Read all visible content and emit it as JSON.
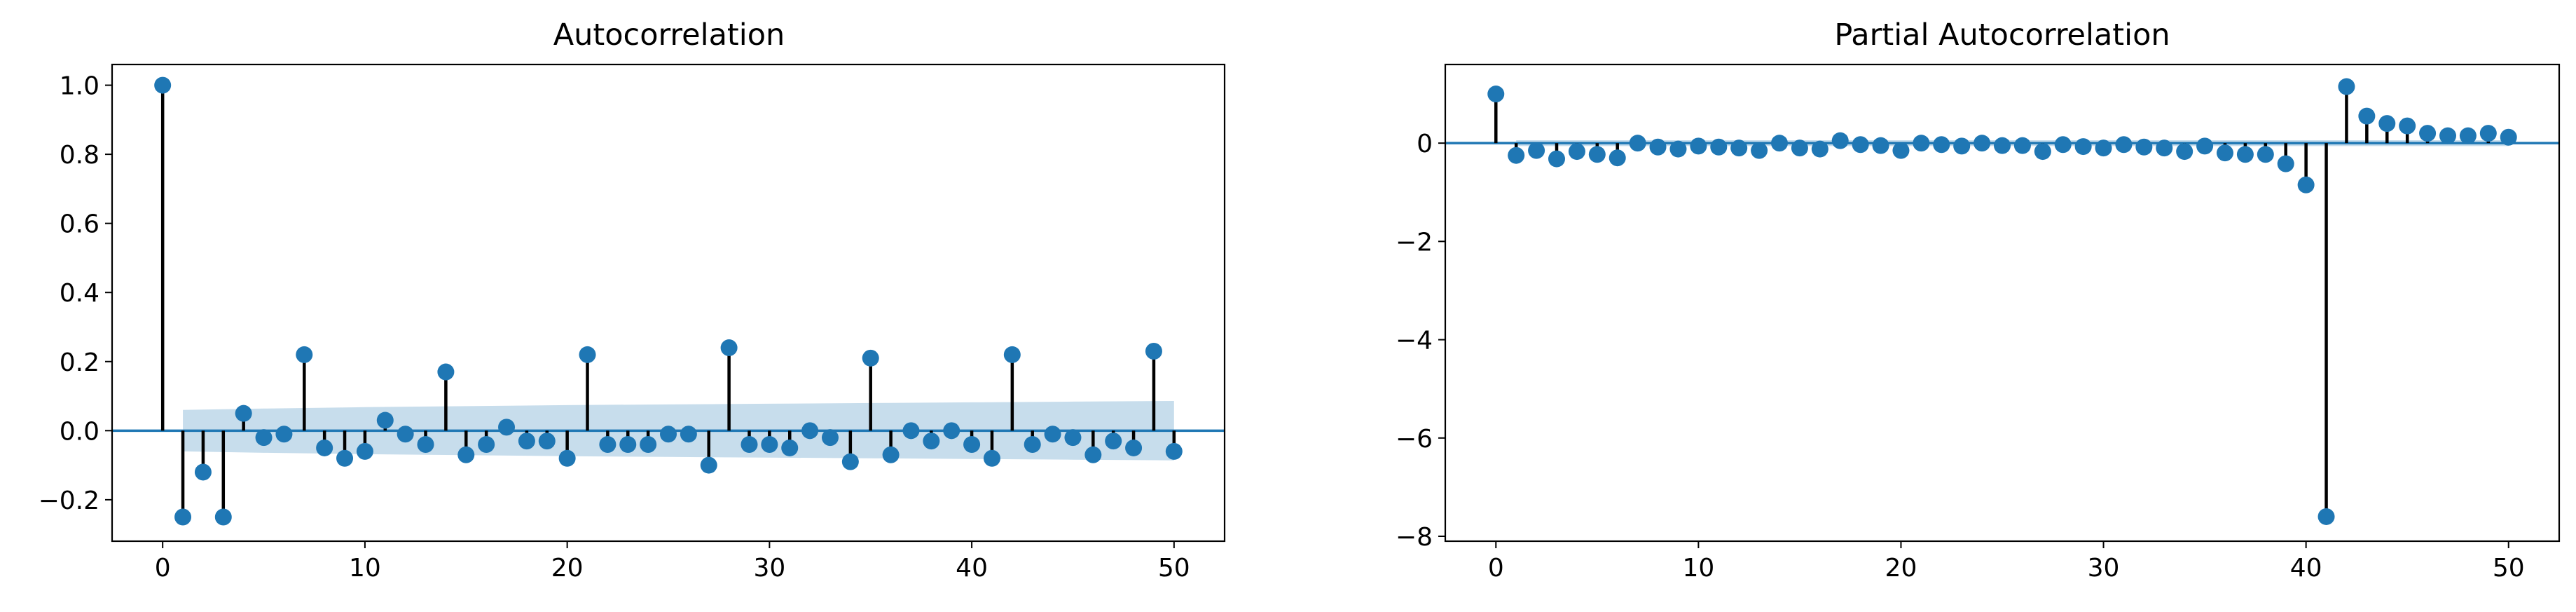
{
  "colors": {
    "marker": "#1f77b4",
    "stem": "#000000",
    "confidence_band": "#1f77b4",
    "zero_line": "#1f77b4"
  },
  "chart_data": [
    {
      "type": "stem",
      "title": "Autocorrelation",
      "xlabel": "",
      "ylabel": "",
      "xlim": [
        -2.5,
        52.5
      ],
      "ylim": [
        -0.32,
        1.06
      ],
      "xticks": [
        0,
        10,
        20,
        30,
        40,
        50
      ],
      "xtick_labels": [
        "0",
        "10",
        "20",
        "30",
        "40",
        "50"
      ],
      "yticks": [
        -0.2,
        0.0,
        0.2,
        0.4,
        0.6,
        0.8,
        1.0
      ],
      "ytick_labels": [
        "−0.2",
        "0.0",
        "0.2",
        "0.4",
        "0.6",
        "0.8",
        "1.0"
      ],
      "grid": false,
      "x": [
        0,
        1,
        2,
        3,
        4,
        5,
        6,
        7,
        8,
        9,
        10,
        11,
        12,
        13,
        14,
        15,
        16,
        17,
        18,
        19,
        20,
        21,
        22,
        23,
        24,
        25,
        26,
        27,
        28,
        29,
        30,
        31,
        32,
        33,
        34,
        35,
        36,
        37,
        38,
        39,
        40,
        41,
        42,
        43,
        44,
        45,
        46,
        47,
        48,
        49,
        50
      ],
      "values": [
        1.0,
        -0.25,
        -0.12,
        -0.25,
        0.05,
        -0.02,
        -0.01,
        0.22,
        -0.05,
        -0.08,
        -0.06,
        0.03,
        -0.01,
        -0.04,
        0.17,
        -0.07,
        -0.04,
        0.01,
        -0.03,
        -0.03,
        -0.08,
        0.22,
        -0.04,
        -0.04,
        -0.04,
        -0.01,
        -0.01,
        -0.1,
        0.24,
        -0.04,
        -0.04,
        -0.05,
        0.0,
        -0.02,
        -0.09,
        0.21,
        -0.07,
        0.0,
        -0.03,
        0.0,
        -0.04,
        -0.08,
        0.22,
        -0.04,
        -0.01,
        -0.02,
        -0.07,
        -0.03,
        -0.05,
        0.23,
        -0.06
      ],
      "confidence_band": {
        "x": [
          1,
          5,
          10,
          15,
          20,
          25,
          30,
          35,
          40,
          45,
          50
        ],
        "upper": [
          0.06,
          0.064,
          0.068,
          0.071,
          0.074,
          0.076,
          0.078,
          0.08,
          0.082,
          0.084,
          0.086
        ],
        "lower": [
          -0.06,
          -0.064,
          -0.068,
          -0.071,
          -0.074,
          -0.076,
          -0.078,
          -0.08,
          -0.082,
          -0.084,
          -0.086
        ]
      }
    },
    {
      "type": "stem",
      "title": "Partial Autocorrelation",
      "xlabel": "",
      "ylabel": "",
      "xlim": [
        -2.5,
        52.5
      ],
      "ylim": [
        -8.1,
        1.6
      ],
      "xticks": [
        0,
        10,
        20,
        30,
        40,
        50
      ],
      "xtick_labels": [
        "0",
        "10",
        "20",
        "30",
        "40",
        "50"
      ],
      "yticks": [
        -8,
        -6,
        -4,
        -2,
        0
      ],
      "ytick_labels": [
        "−8",
        "−6",
        "−4",
        "−2",
        "0"
      ],
      "grid": false,
      "x": [
        0,
        1,
        2,
        3,
        4,
        5,
        6,
        7,
        8,
        9,
        10,
        11,
        12,
        13,
        14,
        15,
        16,
        17,
        18,
        19,
        20,
        21,
        22,
        23,
        24,
        25,
        26,
        27,
        28,
        29,
        30,
        31,
        32,
        33,
        34,
        35,
        36,
        37,
        38,
        39,
        40,
        41,
        42,
        43,
        44,
        45,
        46,
        47,
        48,
        49,
        50
      ],
      "values": [
        1.0,
        -0.25,
        -0.15,
        -0.32,
        -0.17,
        -0.23,
        -0.3,
        0.0,
        -0.08,
        -0.12,
        -0.06,
        -0.08,
        -0.1,
        -0.15,
        0.0,
        -0.1,
        -0.12,
        0.05,
        -0.03,
        -0.05,
        -0.15,
        0.0,
        -0.03,
        -0.06,
        0.0,
        -0.05,
        -0.05,
        -0.17,
        -0.03,
        -0.07,
        -0.1,
        -0.03,
        -0.08,
        -0.1,
        -0.17,
        -0.06,
        -0.2,
        -0.23,
        -0.23,
        -0.42,
        -0.85,
        -7.6,
        1.15,
        0.55,
        0.4,
        0.35,
        0.2,
        0.15,
        0.15,
        0.2,
        0.12
      ],
      "confidence_band": {
        "x": [
          1,
          50
        ],
        "upper": [
          0.06,
          0.06
        ],
        "lower": [
          -0.06,
          -0.06
        ]
      }
    }
  ]
}
